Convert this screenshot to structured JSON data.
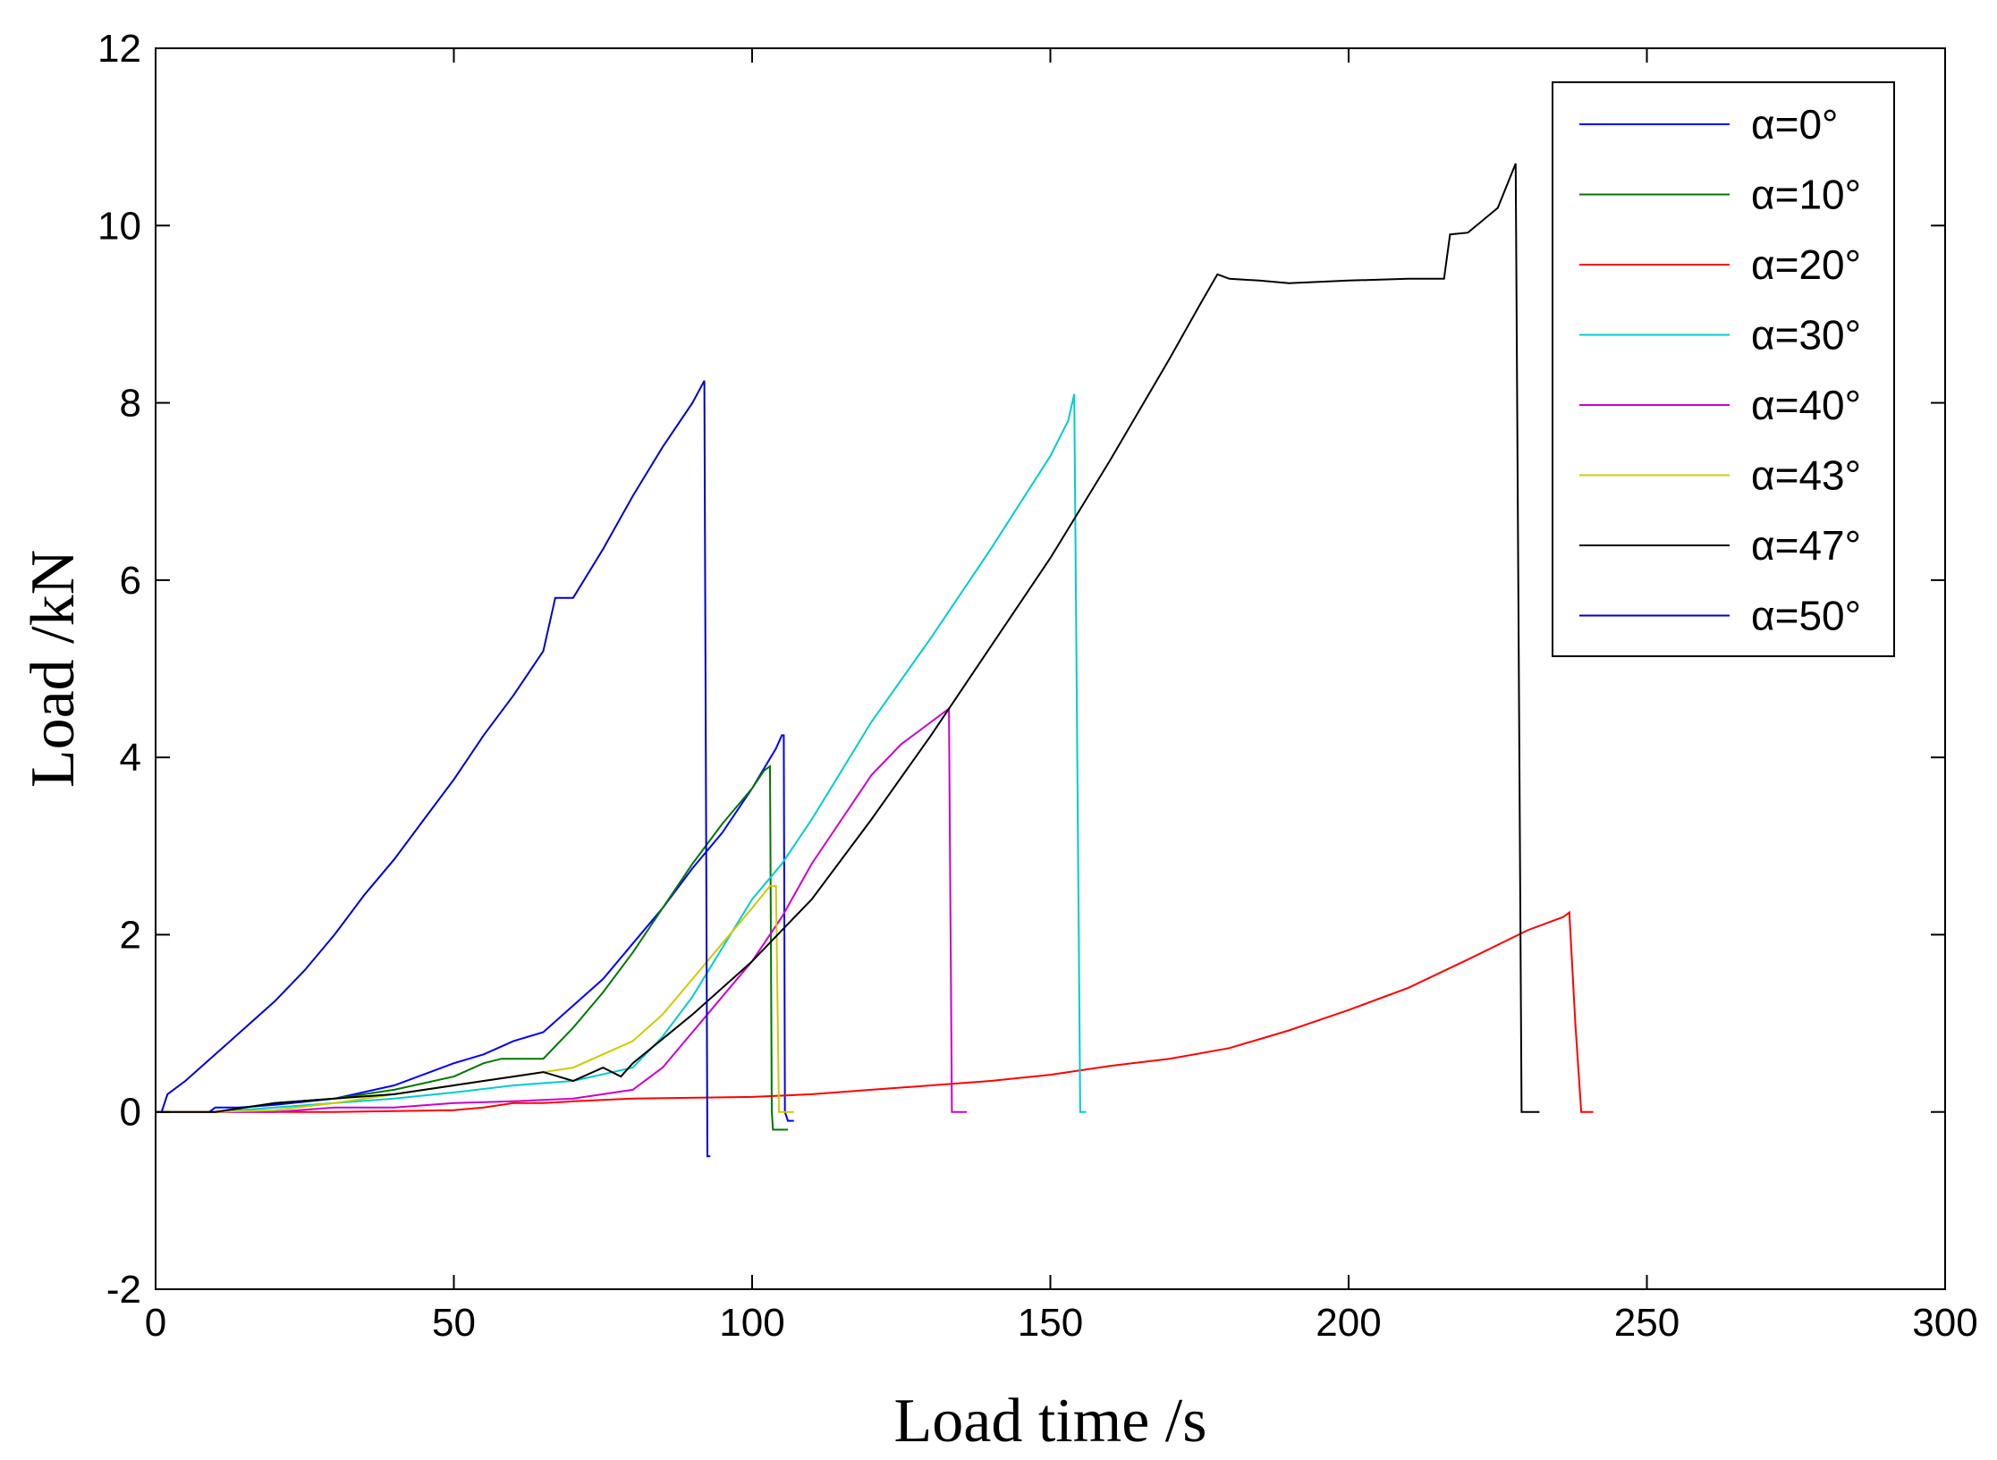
{
  "chart_data": {
    "type": "line",
    "title": "",
    "xlabel": "Load time /s",
    "ylabel": "Load /kN",
    "xlim": [
      0,
      300
    ],
    "ylim": [
      -2,
      12
    ],
    "xticks": [
      0,
      50,
      100,
      150,
      200,
      250,
      300
    ],
    "yticks": [
      -2,
      0,
      2,
      4,
      6,
      8,
      10,
      12
    ],
    "grid": false,
    "legend_position": "top-right",
    "series": [
      {
        "name": "α=0°",
        "color": "#0000ff",
        "points": [
          [
            0,
            0
          ],
          [
            9,
            0
          ],
          [
            10,
            0.05
          ],
          [
            14,
            0.05
          ],
          [
            20,
            0.08
          ],
          [
            30,
            0.15
          ],
          [
            40,
            0.3
          ],
          [
            50,
            0.55
          ],
          [
            55,
            0.65
          ],
          [
            60,
            0.8
          ],
          [
            65,
            0.9
          ],
          [
            70,
            1.2
          ],
          [
            75,
            1.5
          ],
          [
            80,
            1.9
          ],
          [
            85,
            2.3
          ],
          [
            90,
            2.75
          ],
          [
            95,
            3.15
          ],
          [
            100,
            3.65
          ],
          [
            104,
            4.1
          ],
          [
            105,
            4.25
          ],
          [
            105.3,
            4.25
          ],
          [
            105.5,
            0
          ],
          [
            106,
            -0.1
          ],
          [
            107,
            -0.1
          ]
        ]
      },
      {
        "name": "α=10°",
        "color": "#007700",
        "points": [
          [
            0,
            0
          ],
          [
            10,
            0
          ],
          [
            20,
            0.1
          ],
          [
            30,
            0.15
          ],
          [
            40,
            0.25
          ],
          [
            50,
            0.4
          ],
          [
            55,
            0.55
          ],
          [
            58,
            0.6
          ],
          [
            65,
            0.6
          ],
          [
            70,
            0.95
          ],
          [
            75,
            1.35
          ],
          [
            80,
            1.8
          ],
          [
            85,
            2.3
          ],
          [
            90,
            2.8
          ],
          [
            95,
            3.25
          ],
          [
            100,
            3.65
          ],
          [
            102,
            3.85
          ],
          [
            103,
            3.9
          ],
          [
            103.3,
            0
          ],
          [
            103.5,
            -0.2
          ],
          [
            106,
            -0.2
          ]
        ]
      },
      {
        "name": "α=20°",
        "color": "#ff0000",
        "points": [
          [
            0,
            0
          ],
          [
            30,
            0
          ],
          [
            50,
            0.02
          ],
          [
            55,
            0.05
          ],
          [
            60,
            0.1
          ],
          [
            65,
            0.1
          ],
          [
            70,
            0.12
          ],
          [
            80,
            0.15
          ],
          [
            100,
            0.17
          ],
          [
            110,
            0.2
          ],
          [
            120,
            0.25
          ],
          [
            130,
            0.3
          ],
          [
            140,
            0.35
          ],
          [
            150,
            0.42
          ],
          [
            160,
            0.52
          ],
          [
            170,
            0.6
          ],
          [
            180,
            0.72
          ],
          [
            190,
            0.92
          ],
          [
            200,
            1.15
          ],
          [
            210,
            1.4
          ],
          [
            220,
            1.72
          ],
          [
            230,
            2.05
          ],
          [
            236,
            2.2
          ],
          [
            237,
            2.25
          ],
          [
            238,
            1.0
          ],
          [
            239,
            0
          ],
          [
            241,
            0
          ]
        ]
      },
      {
        "name": "α=30°",
        "color": "#00cccc",
        "points": [
          [
            0,
            0
          ],
          [
            10,
            0
          ],
          [
            20,
            0.05
          ],
          [
            30,
            0.1
          ],
          [
            40,
            0.15
          ],
          [
            50,
            0.22
          ],
          [
            60,
            0.3
          ],
          [
            70,
            0.35
          ],
          [
            80,
            0.5
          ],
          [
            85,
            0.85
          ],
          [
            90,
            1.3
          ],
          [
            95,
            1.85
          ],
          [
            100,
            2.4
          ],
          [
            105,
            2.8
          ],
          [
            110,
            3.3
          ],
          [
            115,
            3.85
          ],
          [
            120,
            4.4
          ],
          [
            130,
            5.35
          ],
          [
            140,
            6.35
          ],
          [
            150,
            7.4
          ],
          [
            153,
            7.8
          ],
          [
            154,
            8.1
          ],
          [
            155,
            0
          ],
          [
            156,
            0
          ]
        ]
      },
      {
        "name": "α=40°",
        "color": "#cc00cc",
        "points": [
          [
            0,
            0
          ],
          [
            20,
            0
          ],
          [
            30,
            0.05
          ],
          [
            40,
            0.05
          ],
          [
            50,
            0.1
          ],
          [
            60,
            0.12
          ],
          [
            70,
            0.15
          ],
          [
            80,
            0.25
          ],
          [
            85,
            0.5
          ],
          [
            90,
            0.9
          ],
          [
            95,
            1.3
          ],
          [
            100,
            1.7
          ],
          [
            105,
            2.2
          ],
          [
            110,
            2.8
          ],
          [
            115,
            3.3
          ],
          [
            120,
            3.8
          ],
          [
            125,
            4.15
          ],
          [
            130,
            4.4
          ],
          [
            133,
            4.55
          ],
          [
            133.5,
            0
          ],
          [
            134,
            0
          ],
          [
            136,
            0
          ]
        ]
      },
      {
        "name": "α=43°",
        "color": "#cccc00",
        "points": [
          [
            0,
            0
          ],
          [
            10,
            0
          ],
          [
            20,
            0.02
          ],
          [
            30,
            0.1
          ],
          [
            40,
            0.2
          ],
          [
            50,
            0.3
          ],
          [
            60,
            0.4
          ],
          [
            70,
            0.5
          ],
          [
            80,
            0.8
          ],
          [
            85,
            1.1
          ],
          [
            90,
            1.5
          ],
          [
            95,
            1.9
          ],
          [
            100,
            2.3
          ],
          [
            103,
            2.55
          ],
          [
            104,
            2.55
          ],
          [
            104.5,
            0
          ],
          [
            107,
            0
          ]
        ]
      },
      {
        "name": "α=47°",
        "color": "#000000",
        "points": [
          [
            0,
            0
          ],
          [
            10,
            0
          ],
          [
            20,
            0.1
          ],
          [
            30,
            0.15
          ],
          [
            40,
            0.2
          ],
          [
            50,
            0.3
          ],
          [
            55,
            0.35
          ],
          [
            60,
            0.4
          ],
          [
            65,
            0.45
          ],
          [
            70,
            0.35
          ],
          [
            75,
            0.5
          ],
          [
            78,
            0.4
          ],
          [
            80,
            0.55
          ],
          [
            90,
            1.1
          ],
          [
            100,
            1.7
          ],
          [
            110,
            2.4
          ],
          [
            120,
            3.3
          ],
          [
            130,
            4.25
          ],
          [
            140,
            5.25
          ],
          [
            150,
            6.25
          ],
          [
            160,
            7.35
          ],
          [
            170,
            8.5
          ],
          [
            175,
            9.1
          ],
          [
            178,
            9.45
          ],
          [
            180,
            9.4
          ],
          [
            185,
            9.38
          ],
          [
            190,
            9.35
          ],
          [
            200,
            9.38
          ],
          [
            210,
            9.4
          ],
          [
            216,
            9.4
          ],
          [
            217,
            9.9
          ],
          [
            220,
            9.92
          ],
          [
            225,
            10.2
          ],
          [
            228,
            10.7
          ],
          [
            229,
            0
          ],
          [
            232,
            0
          ]
        ]
      },
      {
        "name": "α=50°",
        "color": "#0000cc",
        "points": [
          [
            0,
            0
          ],
          [
            1,
            0
          ],
          [
            2,
            0.2
          ],
          [
            5,
            0.35
          ],
          [
            10,
            0.65
          ],
          [
            15,
            0.95
          ],
          [
            20,
            1.25
          ],
          [
            25,
            1.6
          ],
          [
            30,
            2.0
          ],
          [
            35,
            2.45
          ],
          [
            40,
            2.85
          ],
          [
            45,
            3.3
          ],
          [
            50,
            3.75
          ],
          [
            55,
            4.25
          ],
          [
            60,
            4.7
          ],
          [
            65,
            5.2
          ],
          [
            67,
            5.8
          ],
          [
            70,
            5.8
          ],
          [
            75,
            6.35
          ],
          [
            80,
            6.95
          ],
          [
            85,
            7.5
          ],
          [
            90,
            8.0
          ],
          [
            92,
            8.25
          ],
          [
            92.5,
            -0.5
          ],
          [
            93,
            -0.5
          ]
        ]
      }
    ]
  }
}
